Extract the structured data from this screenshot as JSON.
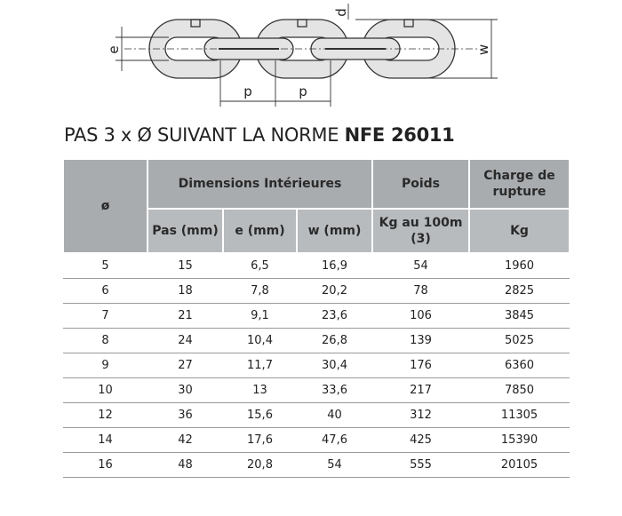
{
  "diagram": {
    "labels": {
      "e": "e",
      "d": "d",
      "w": "w",
      "p_left": "p",
      "p_right": "p"
    }
  },
  "title": {
    "text": "PAS 3 x Ø SUIVANT LA NORME",
    "emphasis": "NFE 26011"
  },
  "table": {
    "header_row_1": [
      "ø",
      "Dimensions Intérieures",
      "Poids",
      "Charge de rupture"
    ],
    "header_row_2": [
      "Pas (mm)",
      "e (mm)",
      "w (mm)",
      "Kg au 100m (3)",
      "Kg"
    ],
    "rows": [
      [
        "5",
        "15",
        "6,5",
        "16,9",
        "54",
        "1960"
      ],
      [
        "6",
        "18",
        "7,8",
        "20,2",
        "78",
        "2825"
      ],
      [
        "7",
        "21",
        "9,1",
        "23,6",
        "106",
        "3845"
      ],
      [
        "8",
        "24",
        "10,4",
        "26,8",
        "139",
        "5025"
      ],
      [
        "9",
        "27",
        "11,7",
        "30,4",
        "176",
        "6360"
      ],
      [
        "10",
        "30",
        "13",
        "33,6",
        "217",
        "7850"
      ],
      [
        "12",
        "36",
        "15,6",
        "40",
        "312",
        "11305"
      ],
      [
        "14",
        "42",
        "17,6",
        "47,6",
        "425",
        "15390"
      ],
      [
        "16",
        "48",
        "20,8",
        "54",
        "555",
        "20105"
      ]
    ]
  }
}
